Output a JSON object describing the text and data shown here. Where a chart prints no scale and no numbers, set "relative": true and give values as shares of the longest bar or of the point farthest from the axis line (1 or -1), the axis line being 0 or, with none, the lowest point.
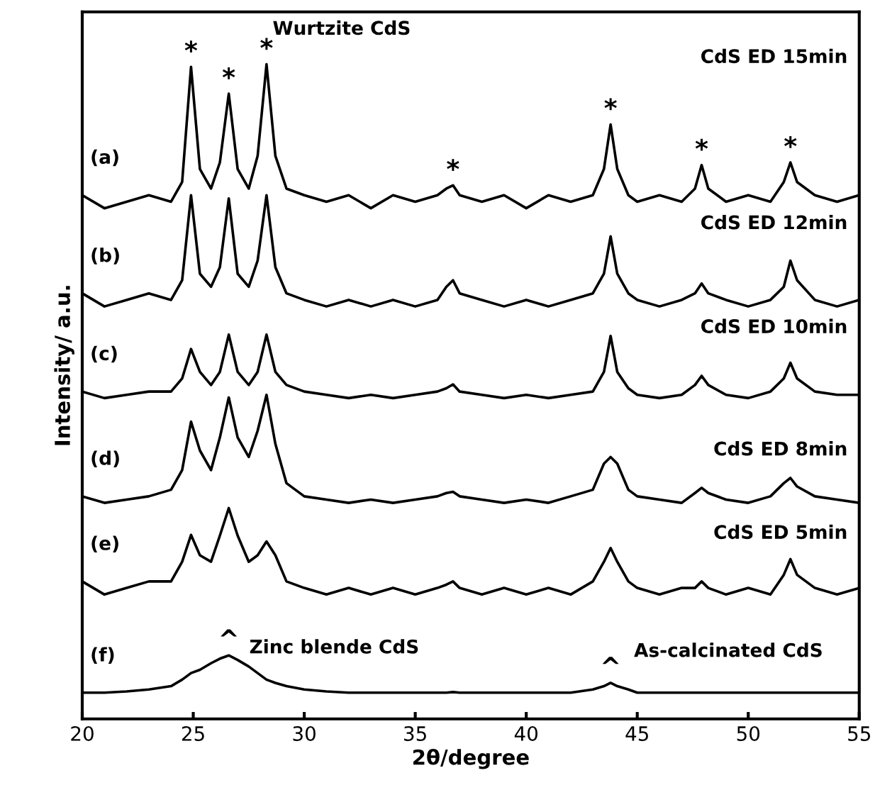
{
  "chart_data": {
    "type": "line",
    "relative": true,
    "xlabel": "2θ/degree",
    "ylabel": "Intensity/ a.u.",
    "xlim": [
      20,
      55
    ],
    "xticks": [
      20,
      25,
      30,
      35,
      40,
      45,
      50,
      55
    ],
    "x": [
      20,
      21,
      22,
      23,
      24,
      24.5,
      24.9,
      25.3,
      25.8,
      26.2,
      26.6,
      27.0,
      27.5,
      27.9,
      28.3,
      28.7,
      29.2,
      30,
      31,
      32,
      33,
      34,
      35,
      36,
      36.4,
      36.7,
      37.0,
      38,
      39,
      40,
      41,
      42,
      43,
      43.5,
      43.8,
      44.1,
      44.6,
      45,
      46,
      47,
      47.6,
      47.9,
      48.2,
      49,
      50,
      51,
      51.6,
      51.9,
      52.2,
      53,
      54,
      55
    ],
    "series": [
      {
        "name": "(a)",
        "color": "#000000",
        "values": [
          0.8,
          0.78,
          0.79,
          0.8,
          0.79,
          0.82,
          0.996,
          0.84,
          0.81,
          0.85,
          0.955,
          0.84,
          0.81,
          0.86,
          1.0,
          0.86,
          0.81,
          0.8,
          0.79,
          0.8,
          0.78,
          0.8,
          0.79,
          0.8,
          0.81,
          0.815,
          0.8,
          0.79,
          0.8,
          0.78,
          0.8,
          0.79,
          0.8,
          0.84,
          0.908,
          0.84,
          0.8,
          0.79,
          0.8,
          0.79,
          0.81,
          0.846,
          0.81,
          0.79,
          0.8,
          0.79,
          0.82,
          0.85,
          0.82,
          0.8,
          0.79,
          0.8
        ]
      },
      {
        "name": "(b)",
        "color": "#000000",
        "values": [
          0.65,
          0.63,
          0.64,
          0.65,
          0.64,
          0.67,
          0.8,
          0.68,
          0.66,
          0.69,
          0.795,
          0.68,
          0.66,
          0.7,
          0.8,
          0.69,
          0.65,
          0.64,
          0.63,
          0.64,
          0.63,
          0.64,
          0.63,
          0.64,
          0.66,
          0.67,
          0.65,
          0.64,
          0.63,
          0.64,
          0.63,
          0.64,
          0.65,
          0.68,
          0.737,
          0.68,
          0.65,
          0.64,
          0.63,
          0.64,
          0.65,
          0.665,
          0.65,
          0.64,
          0.63,
          0.64,
          0.66,
          0.7,
          0.67,
          0.64,
          0.63,
          0.64
        ]
      },
      {
        "name": "(c)",
        "color": "#000000",
        "values": [
          0.5,
          0.49,
          0.495,
          0.5,
          0.5,
          0.52,
          0.565,
          0.53,
          0.51,
          0.53,
          0.587,
          0.53,
          0.51,
          0.53,
          0.587,
          0.53,
          0.51,
          0.5,
          0.495,
          0.49,
          0.495,
          0.49,
          0.495,
          0.5,
          0.505,
          0.511,
          0.5,
          0.495,
          0.49,
          0.495,
          0.49,
          0.495,
          0.5,
          0.53,
          0.585,
          0.53,
          0.505,
          0.495,
          0.49,
          0.495,
          0.51,
          0.524,
          0.51,
          0.495,
          0.49,
          0.5,
          0.52,
          0.544,
          0.52,
          0.5,
          0.495,
          0.495
        ]
      },
      {
        "name": "(d)",
        "color": "#000000",
        "values": [
          0.34,
          0.33,
          0.335,
          0.34,
          0.35,
          0.38,
          0.454,
          0.41,
          0.38,
          0.43,
          0.491,
          0.43,
          0.4,
          0.44,
          0.495,
          0.42,
          0.36,
          0.34,
          0.335,
          0.33,
          0.335,
          0.33,
          0.335,
          0.34,
          0.345,
          0.347,
          0.34,
          0.335,
          0.33,
          0.335,
          0.33,
          0.34,
          0.35,
          0.39,
          0.4,
          0.39,
          0.35,
          0.34,
          0.335,
          0.33,
          0.345,
          0.353,
          0.345,
          0.335,
          0.33,
          0.34,
          0.36,
          0.368,
          0.355,
          0.34,
          0.335,
          0.33
        ]
      },
      {
        "name": "(e)",
        "color": "#000000",
        "values": [
          0.21,
          0.19,
          0.2,
          0.21,
          0.21,
          0.24,
          0.281,
          0.25,
          0.24,
          0.28,
          0.322,
          0.28,
          0.24,
          0.25,
          0.271,
          0.25,
          0.21,
          0.2,
          0.19,
          0.2,
          0.19,
          0.2,
          0.19,
          0.2,
          0.205,
          0.21,
          0.2,
          0.19,
          0.2,
          0.19,
          0.2,
          0.19,
          0.21,
          0.24,
          0.261,
          0.24,
          0.21,
          0.2,
          0.19,
          0.2,
          0.2,
          0.21,
          0.2,
          0.19,
          0.2,
          0.19,
          0.22,
          0.244,
          0.22,
          0.2,
          0.19,
          0.2
        ]
      },
      {
        "name": "(f)",
        "color": "#000000",
        "values": [
          0.04,
          0.04,
          0.042,
          0.045,
          0.05,
          0.06,
          0.07,
          0.075,
          0.085,
          0.092,
          0.097,
          0.09,
          0.08,
          0.07,
          0.06,
          0.055,
          0.05,
          0.045,
          0.042,
          0.04,
          0.04,
          0.04,
          0.04,
          0.04,
          0.04,
          0.041,
          0.04,
          0.04,
          0.04,
          0.04,
          0.04,
          0.04,
          0.045,
          0.05,
          0.055,
          0.05,
          0.045,
          0.04,
          0.04,
          0.04,
          0.04,
          0.04,
          0.04,
          0.04,
          0.04,
          0.04,
          0.04,
          0.04,
          0.04,
          0.04,
          0.04,
          0.04
        ]
      }
    ],
    "annotations": [
      {
        "text": "*",
        "x": 24.9,
        "y": 0.996
      },
      {
        "text": "*",
        "x": 26.6,
        "y": 0.955
      },
      {
        "text": "*",
        "x": 28.3,
        "y": 1.0
      },
      {
        "text": "*",
        "x": 36.7,
        "y": 0.815
      },
      {
        "text": "*",
        "x": 43.8,
        "y": 0.908
      },
      {
        "text": "*",
        "x": 47.9,
        "y": 0.846
      },
      {
        "text": "*",
        "x": 51.9,
        "y": 0.85
      },
      "Wurtzite CdS",
      "CdS ED 15min",
      "CdS ED 12min",
      "CdS ED 10min",
      "CdS ED 8min",
      "CdS ED 5min",
      "Zinc blende CdS",
      "As-calcinated CdS",
      {
        "text": "^",
        "x": 26.6,
        "y": 0.097
      },
      {
        "text": "^",
        "x": 43.8,
        "y": 0.055
      }
    ]
  }
}
